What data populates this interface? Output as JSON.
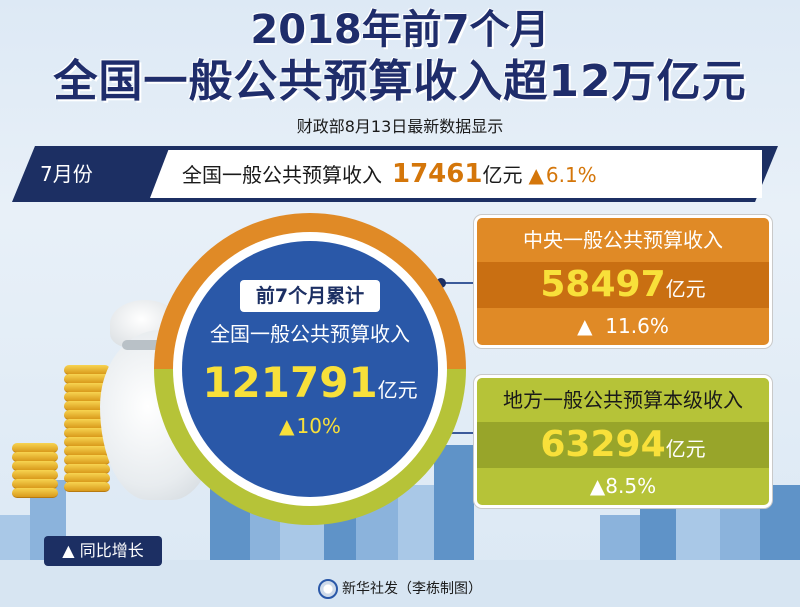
{
  "header": {
    "title_line1": "2018年前7个月",
    "title_line2": "全国一般公共预算收入超12万亿元",
    "subtitle": "财政部8月13日最新数据显示"
  },
  "july": {
    "month_label": "7月份",
    "label": "全国一般公共预算收入",
    "value": "17461",
    "unit": "亿元",
    "arrow": "▲",
    "growth": "6.1%"
  },
  "cumulative": {
    "badge": "前7个月累计",
    "label": "全国一般公共预算收入",
    "value": "121791",
    "unit": "亿元",
    "arrow": "▲",
    "growth": "10%"
  },
  "central": {
    "label": "中央一般公共预算收入",
    "value": "58497",
    "unit": "亿元",
    "arrow": "▲",
    "growth": "11.6%"
  },
  "local": {
    "label": "地方一般公共预算本级收入",
    "value": "63294",
    "unit": "亿元",
    "arrow": "▲",
    "growth": "8.5%"
  },
  "legend": {
    "text": "▲ 同比增长"
  },
  "credit": {
    "text": "新华社发（李栋制图）"
  },
  "colors": {
    "navy": "#1c2f63",
    "orange": "#e08a26",
    "green": "#b6c338",
    "blue": "#2a58a8",
    "yellow": "#f8e03a"
  }
}
